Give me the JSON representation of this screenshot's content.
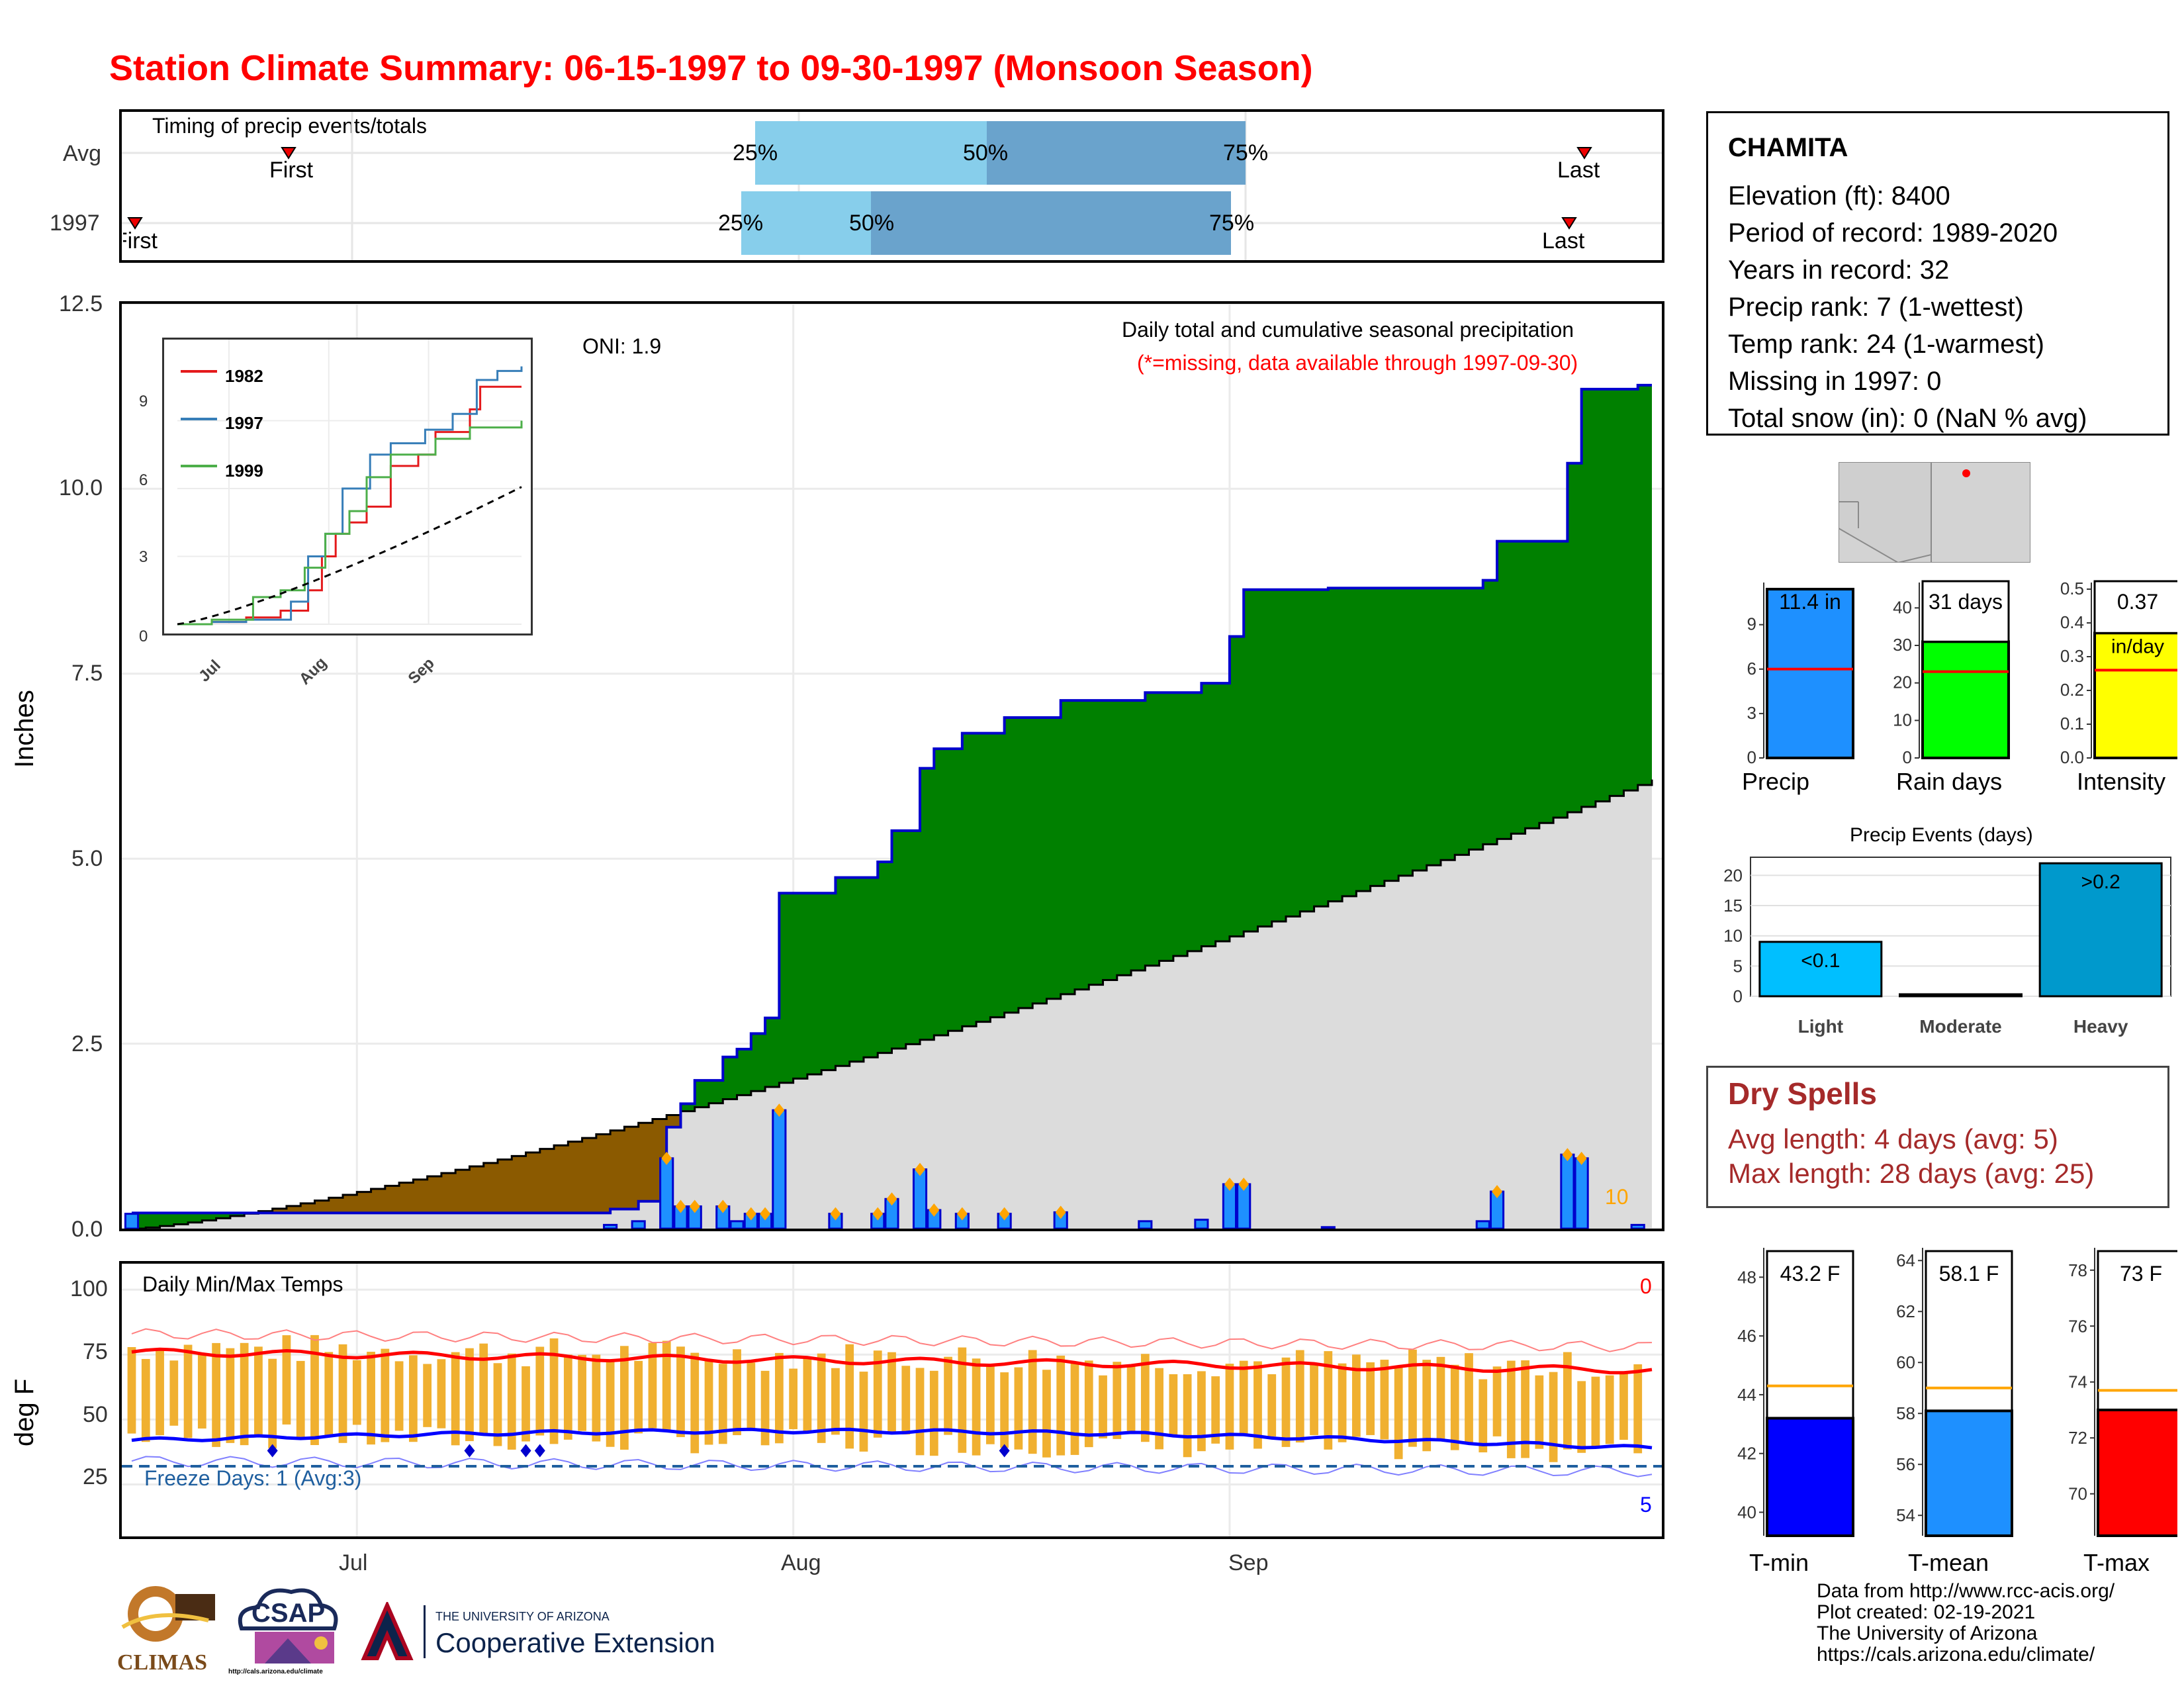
{
  "title": "Station Climate Summary: 06-15-1997 to 09-30-1997 (Monsoon Season)",
  "timing": {
    "label": "Timing of precip events/totals",
    "rows": [
      "Avg",
      "1997"
    ],
    "avg": {
      "first": "First",
      "last": "Last",
      "p25": "25%",
      "p50": "50%",
      "p75": "75%"
    },
    "y1997": {
      "first": "First",
      "last": "Last",
      "p25": "25%",
      "p50": "50%",
      "p75": "75%"
    },
    "avg_dates": {
      "first": "06-25",
      "p25": "07-24",
      "p50": "08-08",
      "p75": "08-29",
      "last": "09-29"
    },
    "y1997_dates": {
      "first": "06-15",
      "p25": "07-23",
      "p50": "07-31",
      "p75": "08-28",
      "last": "09-28"
    }
  },
  "precip_panel": {
    "ylabel": "Inches",
    "ylim": [
      0,
      12.5
    ],
    "yticks": [
      "0.0",
      "2.5",
      "5.0",
      "7.5",
      "10.0",
      "12.5"
    ],
    "oni": "ONI: 1.9",
    "subtitle": "Daily total and cumulative seasonal precipitation",
    "missing_note": "(*=missing, data available through 1997-09-30)",
    "count_label": "10",
    "colors": {
      "above": "#008000",
      "below": "#8b5a00",
      "avg_fill": "#dcdcdc",
      "bars": "#1e90ff",
      "line": "#0000cd",
      "marker": "#ffa500"
    }
  },
  "inset": {
    "legend": [
      "1982",
      "1997",
      "1999"
    ],
    "yticks": [
      "0",
      "3",
      "6",
      "9"
    ],
    "xticks": [
      "Jul",
      "Aug",
      "Sep"
    ],
    "colors": {
      "1982": "#e41a1c",
      "1997": "#377eb8",
      "1999": "#4daf4a"
    }
  },
  "temp_panel": {
    "ylabel": "deg F",
    "title": "Daily Min/Max Temps",
    "yticks": [
      "25",
      "50",
      "75",
      "100"
    ],
    "freeze_label": "Freeze Days: 1 (Avg:3)",
    "count_max": "0",
    "count_min": "5"
  },
  "x_axis": {
    "ticks": [
      "Jul",
      "Aug",
      "Sep"
    ]
  },
  "station": {
    "name": "CHAMITA",
    "lines": [
      "Elevation (ft): 8400",
      "Period of record: 1989-2020",
      "Years in record: 32",
      "Precip rank: 7 (1-wettest)",
      "Temp rank: 24 (1-warmest)",
      "Missing in 1997: 0",
      "Total snow (in): 0 (NaN % avg)"
    ]
  },
  "summary_bars": {
    "precip": {
      "label": "Precip",
      "value_text": "11.4 in",
      "value": 11.4,
      "avg": 6.0,
      "ymax": 11.4,
      "ticks": [
        "0",
        "3",
        "6",
        "9"
      ],
      "color": "#1e90ff"
    },
    "rain_days": {
      "label": "Rain days",
      "value_text": "31 days",
      "value": 31,
      "avg": 23,
      "ymax": 45,
      "ticks": [
        "0",
        "10",
        "20",
        "30",
        "40"
      ],
      "color": "#00ff00"
    },
    "intensity": {
      "label": "Intensity",
      "value_text": "0.37",
      "unit": "in/day",
      "value": 0.37,
      "avg": 0.26,
      "ymax": 0.5,
      "ticks": [
        "0.0",
        "0.1",
        "0.2",
        "0.3",
        "0.4",
        "0.5"
      ],
      "color": "#ffff00"
    }
  },
  "precip_events": {
    "title": "Precip Events (days)",
    "categories": [
      "Light",
      "Moderate",
      "Heavy"
    ],
    "values": [
      9,
      0,
      22
    ],
    "bar_labels": [
      "<0.1",
      "",
      ">0.2"
    ],
    "ticks": [
      "0",
      "5",
      "10",
      "15",
      "20"
    ],
    "colors": [
      "#00bfff",
      "#00bfff",
      "#0099cc"
    ]
  },
  "dry_spells": {
    "title": "Dry Spells",
    "avg_line": "Avg length: 4 days (avg: 5)",
    "max_line": "Max length: 28 days (avg: 25)"
  },
  "temp_bars": {
    "tmin": {
      "label": "T-min",
      "value_text": "43.2 F",
      "value": 43.2,
      "avg": 44.3,
      "ylim": [
        39.2,
        49
      ],
      "ticks": [
        "40",
        "42",
        "44",
        "46",
        "48"
      ],
      "color": "#0000ff"
    },
    "tmean": {
      "label": "T-mean",
      "value_text": "58.1 F",
      "value": 58.1,
      "avg": 59,
      "ylim": [
        53.2,
        64.5
      ],
      "ticks": [
        "54",
        "56",
        "58",
        "60",
        "62",
        "64"
      ],
      "color": "#1e90ff"
    },
    "tmax": {
      "label": "T-max",
      "value_text": "73 F",
      "value": 73,
      "avg": 73.7,
      "ylim": [
        68.5,
        78.8
      ],
      "ticks": [
        "70",
        "72",
        "74",
        "76",
        "78"
      ],
      "color": "#ff0000"
    }
  },
  "logos": {
    "climas": "CLIMAS",
    "csap": "CSAP",
    "csap_url": "http://cals.arizona.edu/climate",
    "ua_small": "THE UNIVERSITY OF ARIZONA",
    "ua_big": "Cooperative Extension"
  },
  "footer": [
    "Data from http://www.rcc-acis.org/",
    "Plot created: 02-19-2021",
    "The University of Arizona",
    "https://cals.arizona.edu/climate/"
  ],
  "chart_data": {
    "type": "area",
    "title": "Station Climate Summary: 06-15-1997 to 09-30-1997 (Monsoon Season)",
    "ylabel": "Inches",
    "ylim": [
      0,
      12.5
    ],
    "x": [
      "06-15",
      "06-30",
      "07-15",
      "07-23",
      "07-31",
      "08-05",
      "08-15",
      "08-25",
      "08-28",
      "09-15",
      "09-20",
      "09-30"
    ],
    "series": [
      {
        "name": "1997",
        "values": [
          0.2,
          0.2,
          0.2,
          1.6,
          4.8,
          7.1,
          7.1,
          7.6,
          8.8,
          9.4,
          11.3,
          11.4
        ]
      }
    ],
    "daily_precip": [
      {
        "date": "07-23",
        "value": 0.95
      },
      {
        "date": "07-25",
        "value": 0.3
      },
      {
        "date": "07-31",
        "value": 1.6
      },
      {
        "date": "08-04",
        "value": 0.4
      },
      {
        "date": "08-06",
        "value": 0.8
      },
      {
        "date": "08-16",
        "value": 0.2
      },
      {
        "date": "08-28",
        "value": 0.6
      },
      {
        "date": "08-29",
        "value": 0.6
      },
      {
        "date": "09-14",
        "value": 0.5
      },
      {
        "date": "09-20",
        "value": 1.0
      },
      {
        "date": "09-21",
        "value": 0.9
      }
    ]
  }
}
